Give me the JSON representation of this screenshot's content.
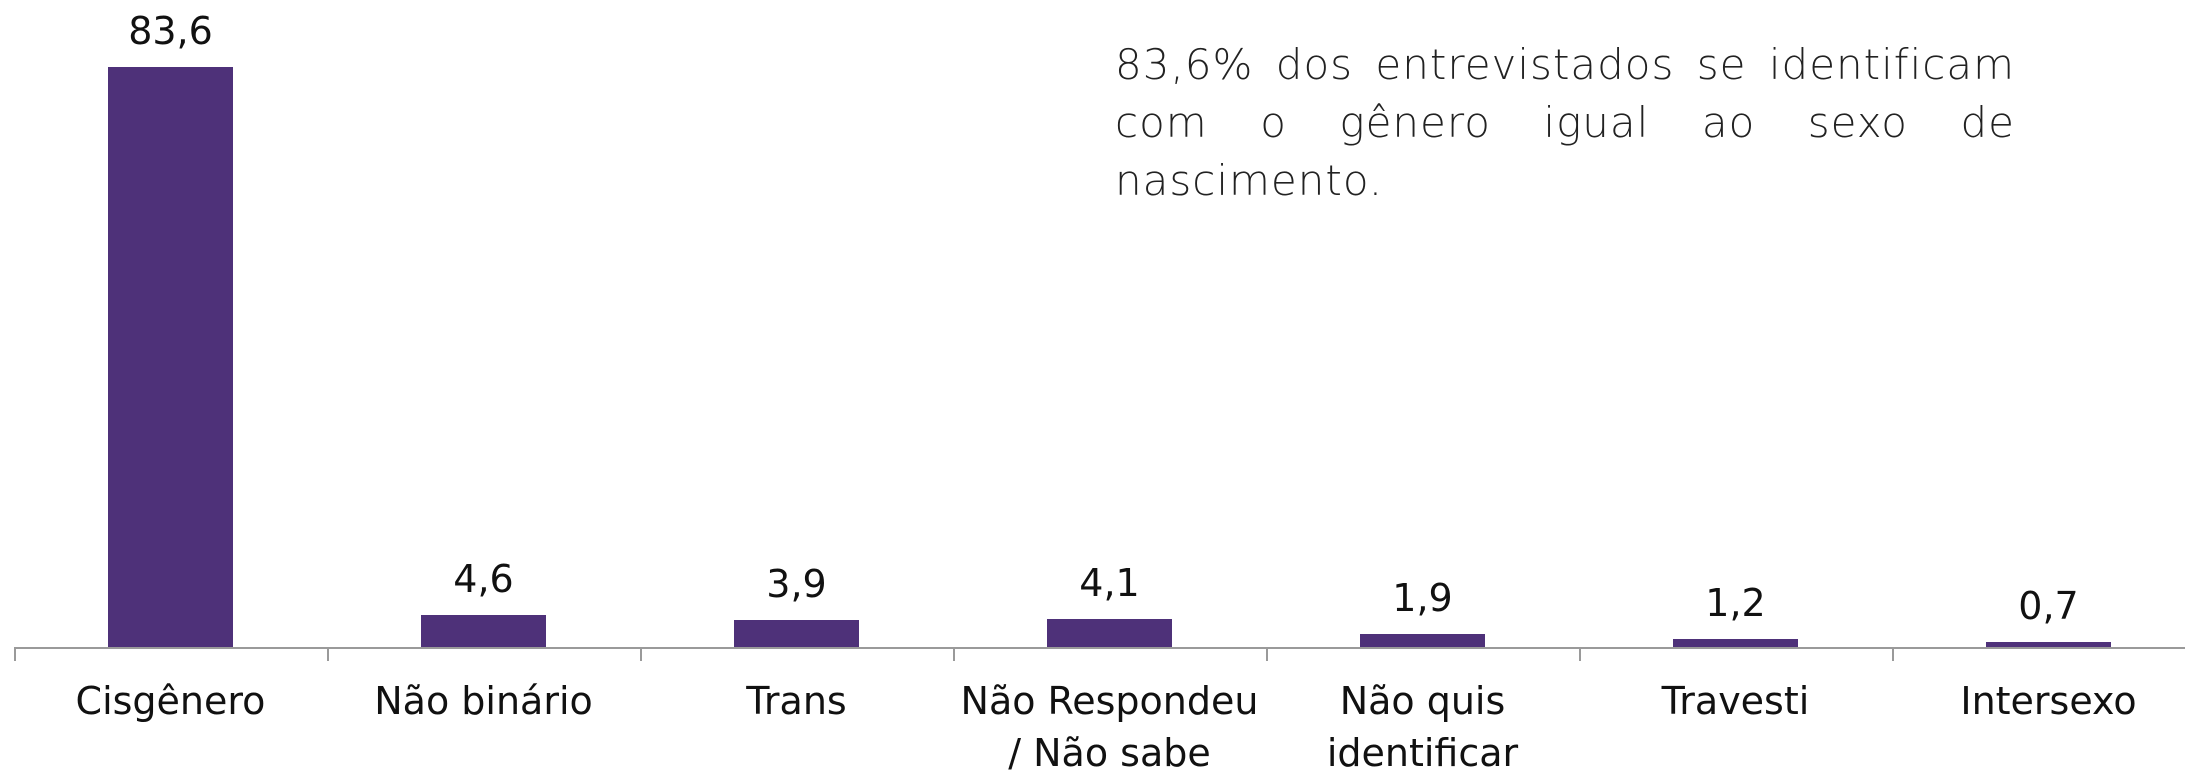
{
  "chart_data": {
    "type": "bar",
    "categories": [
      "Cisgênero",
      "Não binário",
      "Trans",
      "Não Respondeu / Não sabe",
      "Não quis identificar",
      "Travesti",
      "Intersexo"
    ],
    "values": [
      83.6,
      4.6,
      3.9,
      4.1,
      1.9,
      1.2,
      0.7
    ],
    "value_labels": [
      "83,6",
      "4,6",
      "3,9",
      "4,1",
      "1,9",
      "1,2",
      "0,7"
    ],
    "color": "#4e3179",
    "annotation": "83,6% dos entrevistados se identificam com o gênero igual ao sexo de nascimento."
  }
}
